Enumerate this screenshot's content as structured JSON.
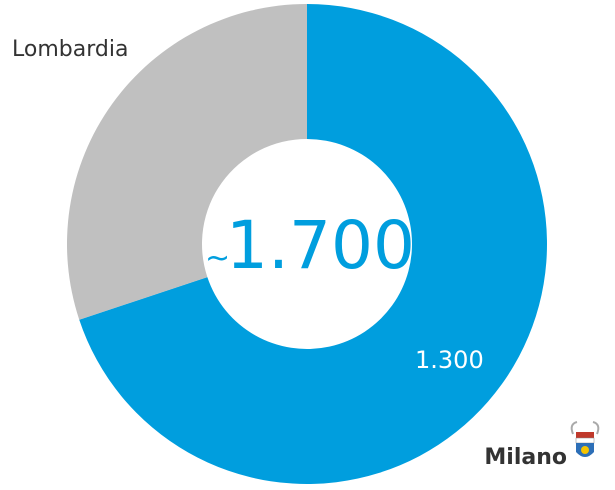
{
  "chart_data": {
    "type": "donut",
    "categories": [
      "Milano",
      "Lombardia"
    ],
    "values": [
      1300,
      560
    ],
    "value_labels": [
      "1.300",
      null
    ],
    "colors": [
      "#009ede",
      "#c0c0c0"
    ],
    "center_label": {
      "prefix": "~",
      "text": "1.700"
    }
  }
}
